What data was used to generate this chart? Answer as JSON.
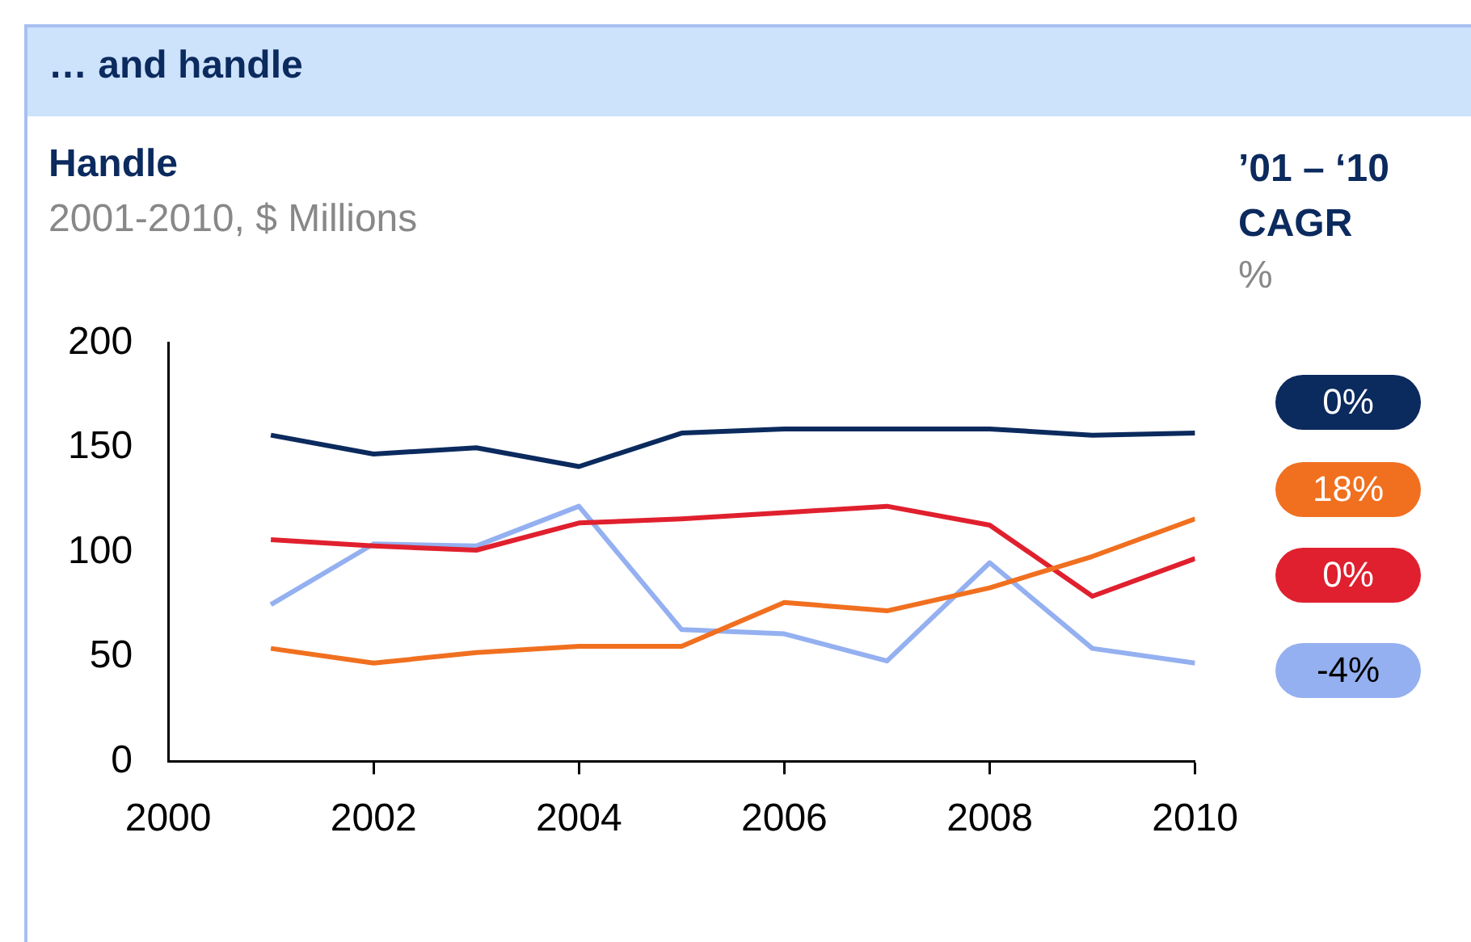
{
  "chart_data": {
    "type": "line",
    "title": "… and handle",
    "subtitle": "Handle",
    "ylabel": "2001-2010, $ Millions",
    "x": [
      2001,
      2002,
      2003,
      2004,
      2005,
      2006,
      2007,
      2008,
      2009,
      2010
    ],
    "series": [
      {
        "color": "#0b2a5e",
        "values": [
          156,
          147,
          150,
          141,
          157,
          159,
          159,
          159,
          156,
          157
        ]
      },
      {
        "color": "#f07020",
        "values": [
          54,
          47,
          52,
          55,
          55,
          76,
          72,
          83,
          98,
          116
        ]
      },
      {
        "color": "#e0202e",
        "values": [
          106,
          103,
          101,
          114,
          116,
          119,
          122,
          113,
          79,
          97
        ]
      },
      {
        "color": "#94b0f0",
        "values": [
          75,
          104,
          103,
          122,
          63,
          61,
          48,
          95,
          54,
          47
        ]
      }
    ],
    "annotations": [
      "’01 – ‘10",
      "CAGR",
      "%",
      "0%",
      "18%",
      "0%",
      "-4%"
    ],
    "xlim": [
      2000,
      2010
    ],
    "xticks": [
      2000,
      2002,
      2004,
      2006,
      2008,
      2010
    ],
    "ylim": [
      0,
      200
    ],
    "yticks": [
      0,
      50,
      100,
      150,
      200
    ],
    "grid": false,
    "legend": false,
    "marker": "none",
    "line_style": "solid"
  }
}
